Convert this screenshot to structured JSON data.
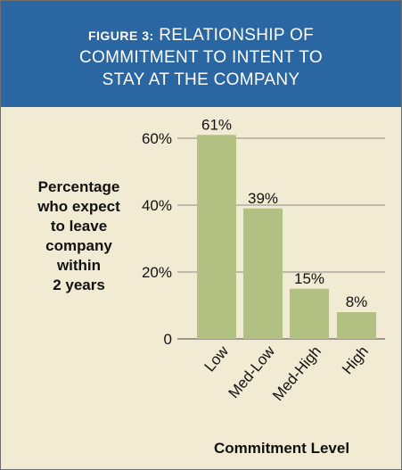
{
  "header": {
    "fig_label": "FIGURE 3:",
    "title_line1": "RELATIONSHIP OF",
    "title_line2": "COMMITMENT TO INTENT TO",
    "title_line3": "STAY AT THE COMPANY"
  },
  "colors": {
    "header_bg": "#2a66a2",
    "panel_bg": "#f2ebd3",
    "bar": "#b2c182"
  },
  "chart_data": {
    "type": "bar",
    "title": "FIGURE 3: RELATIONSHIP OF COMMITMENT TO INTENT TO STAY AT THE COMPANY",
    "categories": [
      "Low",
      "Med-Low",
      "Med-High",
      "High"
    ],
    "values": [
      61,
      39,
      15,
      8
    ],
    "data_labels": [
      "61%",
      "39%",
      "15%",
      "8%"
    ],
    "ylabel_lines": [
      "Percentage",
      "who expect",
      "to leave",
      "company",
      "within",
      "2 years"
    ],
    "xlabel": "Commitment Level",
    "ylim": [
      0,
      65
    ],
    "yticks": [
      0,
      20,
      40,
      60
    ],
    "ytick_labels": [
      "0",
      "20%",
      "40%",
      "60%"
    ],
    "grid": true
  }
}
